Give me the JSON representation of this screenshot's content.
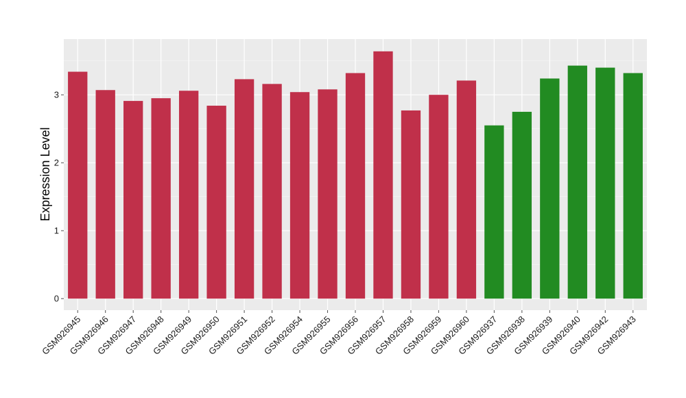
{
  "chart_data": {
    "type": "bar",
    "title": "",
    "xlabel": "",
    "ylabel": "Expression Level",
    "ylim": [
      -0.17,
      3.82
    ],
    "yticks": [
      0,
      1,
      2,
      3
    ],
    "grid": true,
    "legend": "none",
    "categories": [
      "GSM926945",
      "GSM926946",
      "GSM926947",
      "GSM926948",
      "GSM926949",
      "GSM926950",
      "GSM926951",
      "GSM926952",
      "GSM926954",
      "GSM926955",
      "GSM926956",
      "GSM926957",
      "GSM926958",
      "GSM926959",
      "GSM926960",
      "GSM926937",
      "GSM926938",
      "GSM926939",
      "GSM926940",
      "GSM926942",
      "GSM926943"
    ],
    "values": [
      3.34,
      3.07,
      2.91,
      2.95,
      3.06,
      2.84,
      3.23,
      3.16,
      3.04,
      3.08,
      3.32,
      3.64,
      2.77,
      3.0,
      3.21,
      2.55,
      2.75,
      3.24,
      3.43,
      3.4,
      3.32
    ],
    "groups": [
      "red",
      "red",
      "red",
      "red",
      "red",
      "red",
      "red",
      "red",
      "red",
      "red",
      "red",
      "red",
      "red",
      "red",
      "red",
      "green",
      "green",
      "green",
      "green",
      "green",
      "green"
    ],
    "colors": {
      "red": "#c0304a",
      "green": "#228b22"
    }
  }
}
